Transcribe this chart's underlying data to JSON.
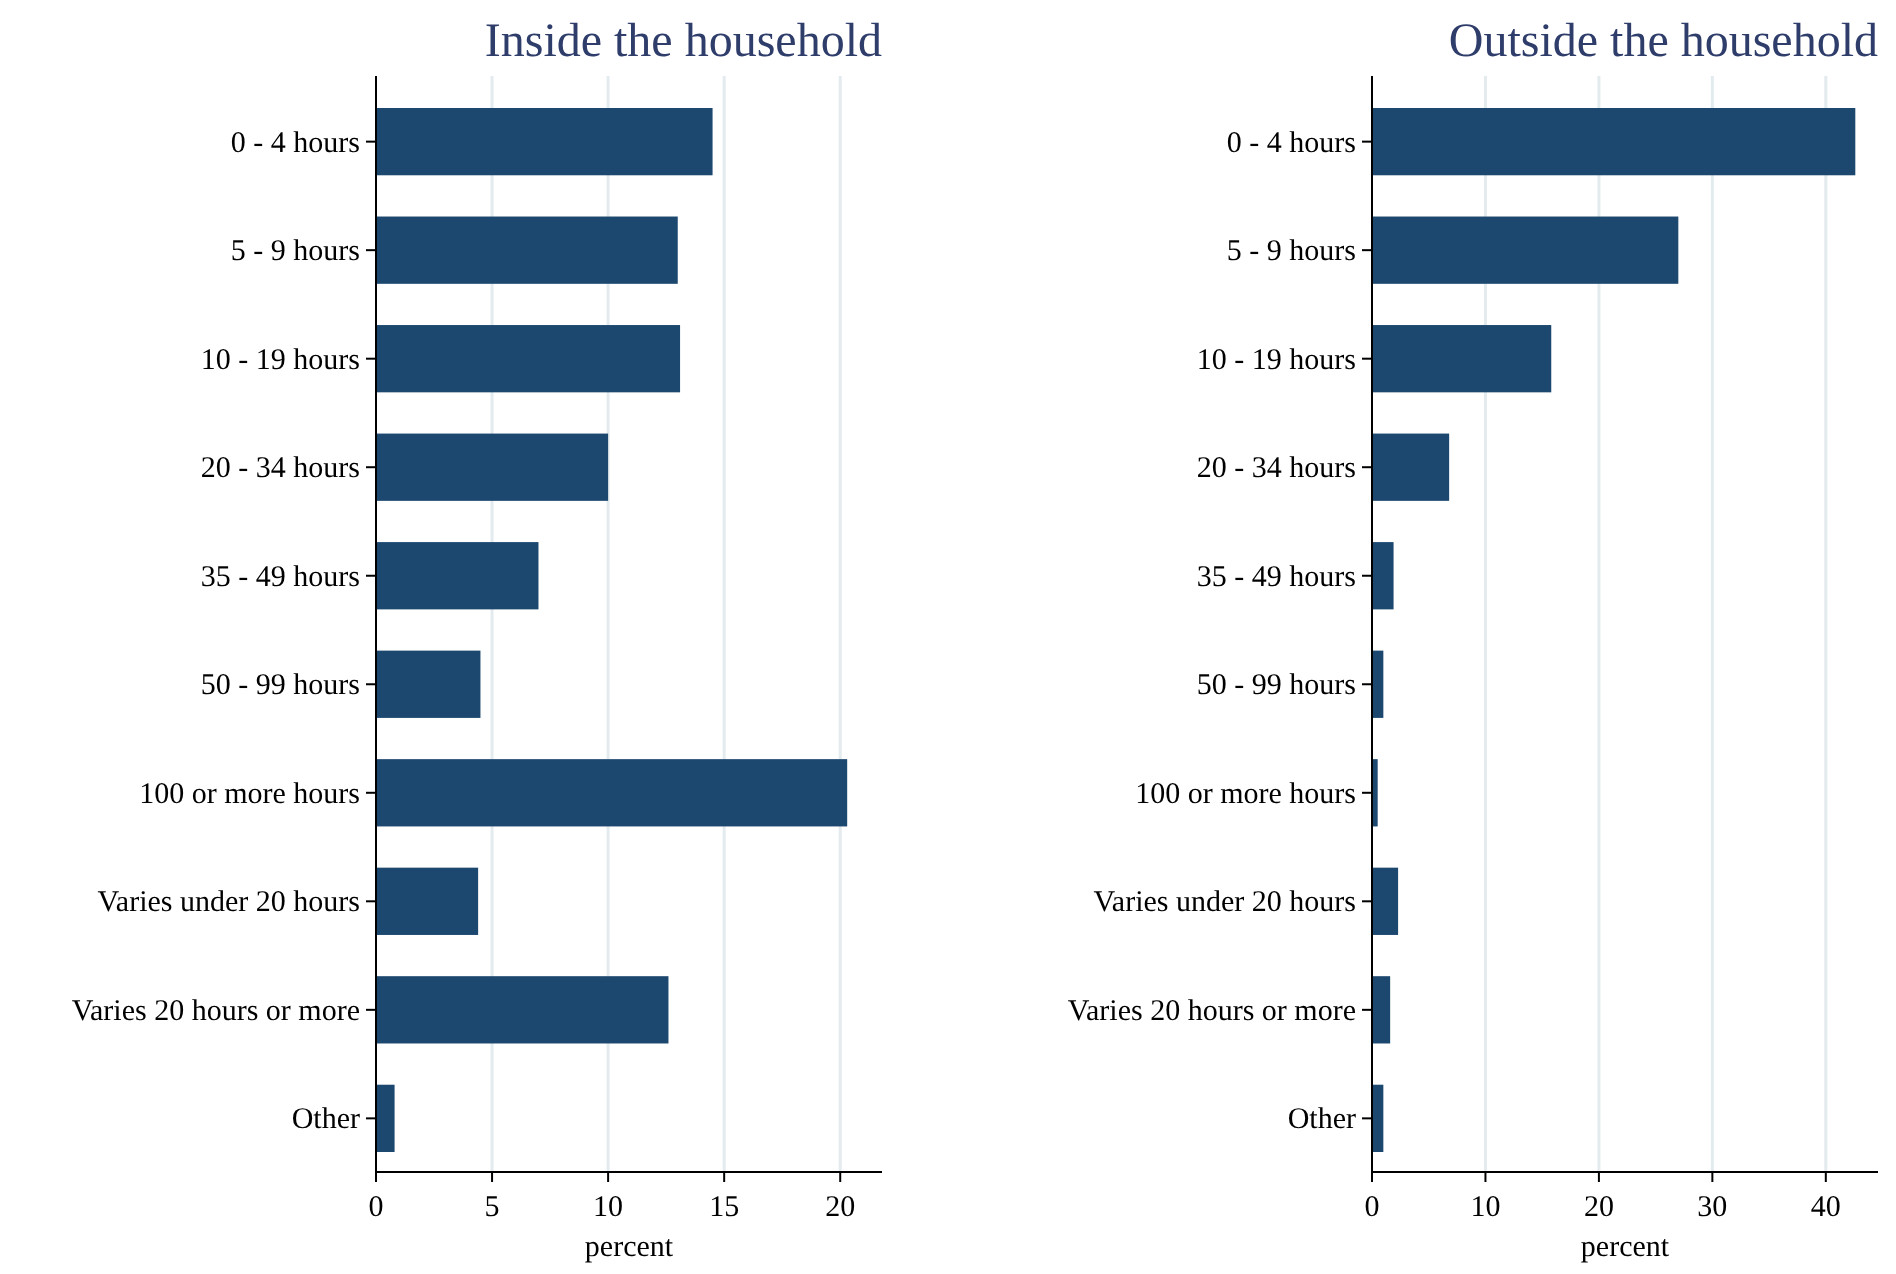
{
  "chart_data": [
    {
      "type": "bar",
      "orientation": "horizontal",
      "title": "Inside the household",
      "xlabel": "percent",
      "categories": [
        "0 - 4 hours",
        "5 - 9 hours",
        "10 - 19 hours",
        "20 - 34 hours",
        "35 - 49 hours",
        "50 - 99 hours",
        "100 or more hours",
        "Varies under 20 hours",
        "Varies 20 hours or more",
        "Other"
      ],
      "values": [
        14.5,
        13.0,
        13.1,
        10.0,
        7.0,
        4.5,
        20.3,
        4.4,
        12.6,
        0.8
      ],
      "color": "#1c476f",
      "xlim": [
        0,
        21.8
      ],
      "xticks": [
        0,
        5,
        10,
        15,
        20
      ],
      "grid": "x"
    },
    {
      "type": "bar",
      "orientation": "horizontal",
      "title": "Outside the household",
      "xlabel": "percent",
      "categories": [
        "0 - 4 hours",
        "5 - 9 hours",
        "10 - 19 hours",
        "20 - 34 hours",
        "35 - 49 hours",
        "50 - 99 hours",
        "100 or more hours",
        "Varies under 20 hours",
        "Varies 20 hours or more",
        "Other"
      ],
      "values": [
        42.6,
        27.0,
        15.8,
        6.8,
        1.9,
        1.0,
        0.5,
        2.3,
        1.6,
        1.0
      ],
      "color": "#1c476f",
      "xlim": [
        0,
        44.6
      ],
      "xticks": [
        0,
        10,
        20,
        30,
        40
      ],
      "grid": "x"
    }
  ]
}
